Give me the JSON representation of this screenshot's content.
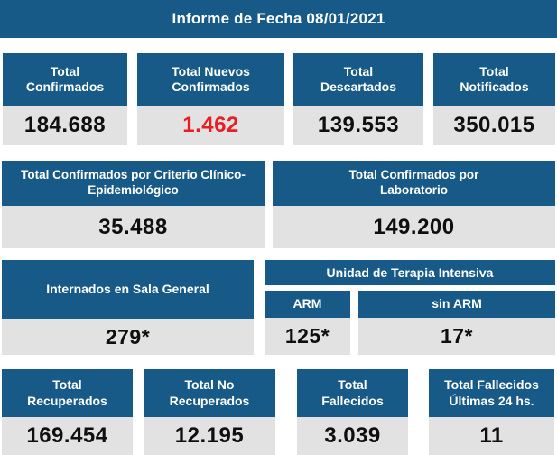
{
  "title": "Informe de Fecha 08/01/2021",
  "colors": {
    "primary_blue": "#185a87",
    "value_panel_gray": "#e2e2e2",
    "alert_red": "#ea1d25",
    "value_text": "#0f0f0f",
    "header_text": "#ffffff"
  },
  "summary_cards": [
    {
      "label": "Total\nConfirmados",
      "value": "184.688"
    },
    {
      "label": "Total Nuevos\nConfirmados",
      "value": "1.462"
    },
    {
      "label": "Total\nDescartados",
      "value": "139.553"
    },
    {
      "label": "Total\nNotificados",
      "value": "350.015"
    }
  ],
  "criteria_cards": [
    {
      "label": "Total Confirmados por Criterio Clínico-\nEpidemiológico",
      "value": "35.488"
    },
    {
      "label": "Total Confirmados por\nLaboratorio",
      "value": "149.200"
    }
  ],
  "hospitalization": {
    "sala_general": {
      "label": "Internados en Sala General",
      "value": "279*"
    },
    "uti": {
      "title": "Unidad de Terapia Intensiva",
      "columns": [
        {
          "label": "ARM",
          "value": "125*"
        },
        {
          "label": "sin ARM",
          "value": "17*"
        }
      ]
    }
  },
  "outcome_cards": [
    {
      "label": "Total\nRecuperados",
      "value": "169.454"
    },
    {
      "label": "Total No\nRecuperados",
      "value": "12.195"
    },
    {
      "label": "Total\nFallecidos",
      "value": "3.039"
    },
    {
      "label": "Total Fallecidos\nÚltimas 24 hs.",
      "value": "11"
    }
  ]
}
